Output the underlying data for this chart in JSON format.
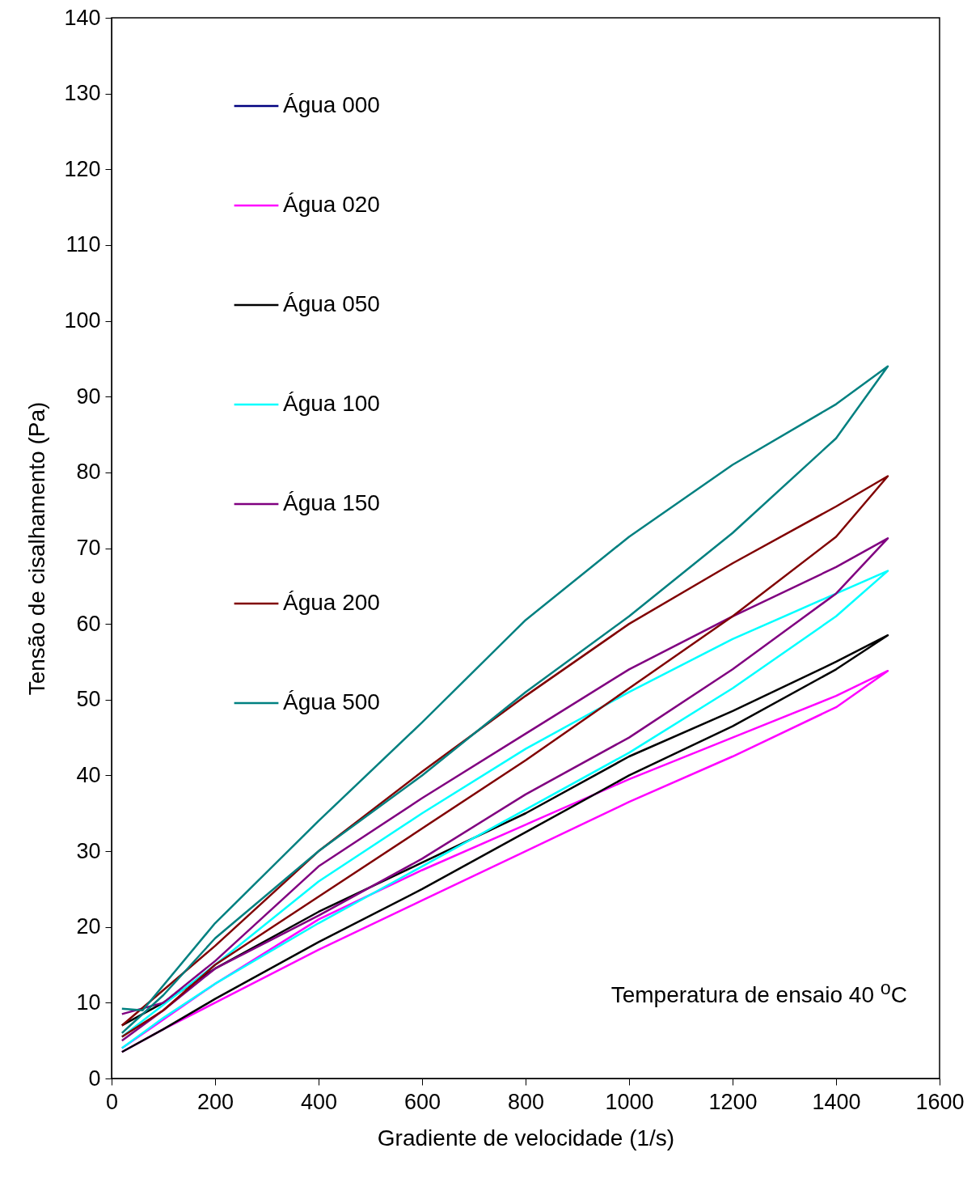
{
  "chart_data": {
    "type": "line",
    "xlabel": "Gradiente de velocidade (1/s)",
    "ylabel": "Tensão de cisalhamento (Pa)",
    "xlim": [
      0,
      1600
    ],
    "xticks": [
      0,
      200,
      400,
      600,
      800,
      1000,
      1200,
      1400,
      1600
    ],
    "ylim": [
      0,
      140
    ],
    "yticks": [
      0,
      10,
      20,
      30,
      40,
      50,
      60,
      70,
      80,
      90,
      100,
      110,
      120,
      130,
      140
    ],
    "legend": "top left",
    "marker": "none",
    "line_style": "solid",
    "annotations": [
      "Temperatura de ensaio 40 $^{o}$C"
    ],
    "series": [
      {
        "name": "Água 000",
        "color": "#000080"
      },
      {
        "name": "Água 020",
        "color": "#ff00ff",
        "x": [
          20,
          200,
          400,
          600,
          800,
          1000,
          1200,
          1400,
          1500,
          1400,
          1200,
          1000,
          800,
          600,
          400,
          200,
          100,
          20
        ],
        "values": [
          4,
          12.5,
          21,
          27.5,
          33.5,
          39.5,
          45,
          50.5,
          53.8,
          49,
          42.5,
          36.5,
          30,
          23.5,
          17,
          10,
          6.5,
          3.5
        ]
      },
      {
        "name": "Água 050",
        "color": "#000000",
        "x": [
          20,
          100,
          200,
          400,
          600,
          800,
          1000,
          1200,
          1400,
          1500,
          1400,
          1200,
          1000,
          800,
          600,
          400,
          200,
          100,
          20
        ],
        "values": [
          7,
          10,
          14.5,
          22,
          28.5,
          35,
          42.5,
          48.5,
          55,
          58.5,
          54,
          46.5,
          40,
          32.5,
          25,
          18,
          10.5,
          6.5,
          3.5
        ]
      },
      {
        "name": "Água 100",
        "color": "#00ffff",
        "x": [
          20,
          200,
          400,
          600,
          800,
          1000,
          1200,
          1400,
          1500,
          1400,
          1200,
          1000,
          800,
          600,
          400,
          200,
          100,
          20
        ],
        "values": [
          5.5,
          15,
          26,
          35,
          43.5,
          51,
          58,
          64,
          67,
          61,
          51.5,
          43,
          35.5,
          28,
          20.5,
          12.5,
          8,
          4
        ]
      },
      {
        "name": "Água 150",
        "color": "#800080",
        "x": [
          20,
          100,
          200,
          400,
          600,
          800,
          1000,
          1200,
          1400,
          1500,
          1400,
          1200,
          1000,
          800,
          600,
          400,
          200,
          100,
          20
        ],
        "values": [
          8.5,
          10,
          15.5,
          28,
          37,
          45.5,
          54,
          61,
          67.5,
          71.3,
          64,
          54,
          45,
          37.5,
          29,
          21.5,
          14.5,
          9,
          5
        ]
      },
      {
        "name": "Água 200",
        "color": "#800000",
        "x": [
          20,
          200,
          400,
          600,
          800,
          1000,
          1200,
          1400,
          1500,
          1400,
          1200,
          1000,
          800,
          600,
          400,
          200,
          100,
          20
        ],
        "values": [
          7,
          17.5,
          30,
          40.5,
          50.5,
          60,
          68,
          75.5,
          79.5,
          71.5,
          61,
          51.5,
          42,
          33,
          24,
          15,
          9,
          5.5
        ]
      },
      {
        "name": "Água 500",
        "color": "#008080",
        "x": [
          20,
          60,
          200,
          400,
          600,
          800,
          1000,
          1200,
          1400,
          1500,
          1400,
          1200,
          1000,
          800,
          600,
          400,
          200,
          100,
          20
        ],
        "values": [
          9.2,
          9,
          20.5,
          34,
          47,
          60.5,
          71.5,
          81,
          89,
          94,
          84.5,
          72,
          61,
          51,
          40,
          30,
          18.5,
          11,
          6
        ]
      }
    ]
  }
}
